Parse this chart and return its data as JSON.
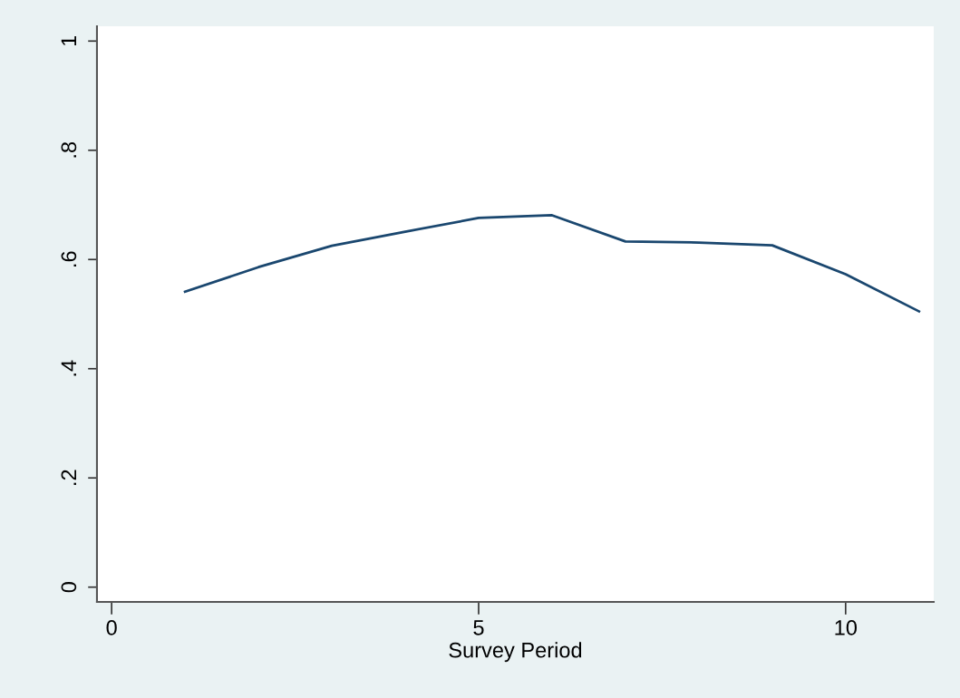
{
  "chart_data": {
    "type": "line",
    "xlabel": "Survey Period",
    "x": [
      1,
      2,
      3,
      4,
      5,
      6,
      7,
      8,
      9,
      10,
      11
    ],
    "series": [
      {
        "color": "#1a476f",
        "values": [
          0.541,
          0.586,
          0.625,
          0.651,
          0.676,
          0.681,
          0.633,
          0.631,
          0.626,
          0.573,
          0.505
        ]
      }
    ],
    "xlim": [
      -0.2,
      11.2
    ],
    "xticks": [
      0,
      5,
      10
    ],
    "ylim": [
      -0.027,
      1.027
    ],
    "yticks": [
      {
        "value": 0,
        "label": "0"
      },
      {
        "value": 0.2,
        "label": ".2"
      },
      {
        "value": 0.4,
        "label": ".4"
      },
      {
        "value": 0.6,
        "label": ".6"
      },
      {
        "value": 0.8,
        "label": ".8"
      },
      {
        "value": 1,
        "label": "1"
      }
    ],
    "grid": false,
    "legend": false,
    "marker": "none",
    "line_style": "solid"
  }
}
